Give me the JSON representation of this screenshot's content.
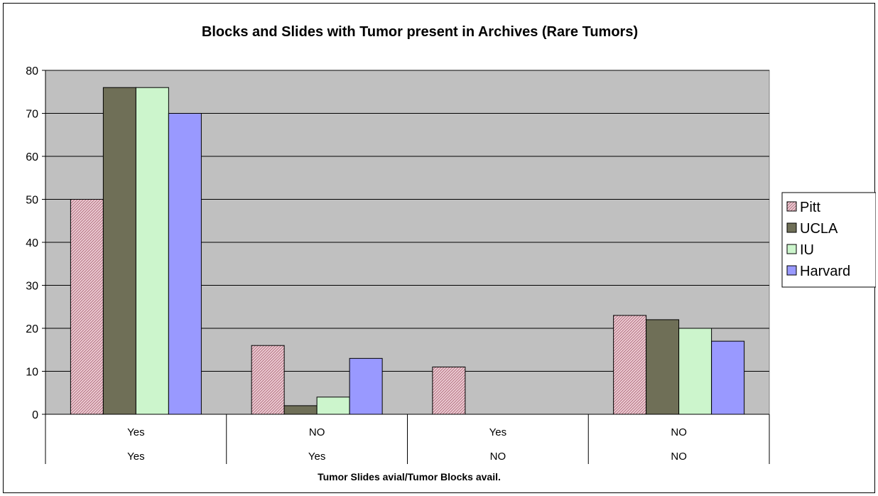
{
  "chart_data": {
    "type": "bar",
    "title": "Blocks and Slides with Tumor present in Archives (Rare Tumors)",
    "xlabel": "Tumor Slides avial/Tumor Blocks avail.",
    "ylabel": "",
    "ylim": [
      0,
      80
    ],
    "yticks": [
      0,
      10,
      20,
      30,
      40,
      50,
      60,
      70,
      80
    ],
    "grid": true,
    "legend_position": "right",
    "categories": [
      {
        "row1": "Yes",
        "row2": "Yes"
      },
      {
        "row1": "NO",
        "row2": "Yes"
      },
      {
        "row1": "Yes",
        "row2": "NO"
      },
      {
        "row1": "NO",
        "row2": "NO"
      }
    ],
    "series": [
      {
        "name": "Pitt",
        "values": [
          50,
          16,
          11,
          23
        ],
        "color": "#e8b4c0",
        "pattern": "hatch"
      },
      {
        "name": "UCLA",
        "values": [
          76,
          2,
          0,
          22
        ],
        "color": "#6f6f57"
      },
      {
        "name": "IU",
        "values": [
          76,
          4,
          0,
          20
        ],
        "color": "#ccf5cc"
      },
      {
        "name": "Harvard",
        "values": [
          70,
          13,
          0,
          17
        ],
        "color": "#9999ff"
      }
    ],
    "plot_background": "#c0c0c0"
  }
}
